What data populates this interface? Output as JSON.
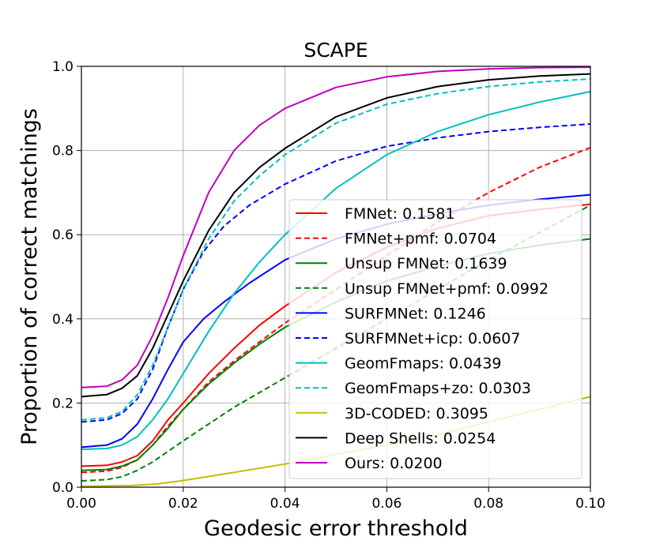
{
  "chart_data": {
    "type": "line",
    "title": "SCAPE",
    "xlabel": "Geodesic error threshold",
    "ylabel": "Proportion of correct matchings",
    "xlim": [
      0,
      0.1
    ],
    "ylim": [
      0,
      1
    ],
    "xticks": [
      0,
      0.02,
      0.04,
      0.06,
      0.08,
      0.1
    ],
    "xtick_labels": [
      "0.00",
      "0.02",
      "0.04",
      "0.06",
      "0.08",
      "0.10"
    ],
    "yticks": [
      0,
      0.2,
      0.4,
      0.6,
      0.8,
      1.0
    ],
    "ytick_labels": [
      "0.0",
      "0.2",
      "0.4",
      "0.6",
      "0.8",
      "1.0"
    ],
    "grid": true,
    "legend_position": "lower-right",
    "series": [
      {
        "name": "FMNet: 0.1581",
        "color": "#ff0000",
        "dash": false,
        "points": [
          [
            0,
            0.05
          ],
          [
            0.005,
            0.052
          ],
          [
            0.008,
            0.06
          ],
          [
            0.011,
            0.075
          ],
          [
            0.014,
            0.11
          ],
          [
            0.017,
            0.16
          ],
          [
            0.02,
            0.2
          ],
          [
            0.025,
            0.27
          ],
          [
            0.03,
            0.33
          ],
          [
            0.035,
            0.385
          ],
          [
            0.04,
            0.43
          ],
          [
            0.05,
            0.51
          ],
          [
            0.06,
            0.57
          ],
          [
            0.07,
            0.615
          ],
          [
            0.08,
            0.645
          ],
          [
            0.09,
            0.66
          ],
          [
            0.1,
            0.672
          ]
        ]
      },
      {
        "name": "FMNet+pmf: 0.0704",
        "color": "#ff0000",
        "dash": true,
        "points": [
          [
            0,
            0.035
          ],
          [
            0.005,
            0.038
          ],
          [
            0.008,
            0.047
          ],
          [
            0.011,
            0.065
          ],
          [
            0.014,
            0.1
          ],
          [
            0.017,
            0.145
          ],
          [
            0.02,
            0.185
          ],
          [
            0.025,
            0.25
          ],
          [
            0.03,
            0.3
          ],
          [
            0.035,
            0.345
          ],
          [
            0.04,
            0.39
          ],
          [
            0.05,
            0.47
          ],
          [
            0.06,
            0.55
          ],
          [
            0.07,
            0.63
          ],
          [
            0.08,
            0.7
          ],
          [
            0.09,
            0.76
          ],
          [
            0.1,
            0.807
          ]
        ]
      },
      {
        "name": "Unsup FMNet: 0.1639",
        "color": "#008000",
        "dash": false,
        "points": [
          [
            0,
            0.04
          ],
          [
            0.005,
            0.042
          ],
          [
            0.008,
            0.05
          ],
          [
            0.011,
            0.065
          ],
          [
            0.014,
            0.1
          ],
          [
            0.017,
            0.14
          ],
          [
            0.02,
            0.185
          ],
          [
            0.025,
            0.245
          ],
          [
            0.03,
            0.295
          ],
          [
            0.035,
            0.34
          ],
          [
            0.04,
            0.38
          ],
          [
            0.05,
            0.44
          ],
          [
            0.06,
            0.49
          ],
          [
            0.07,
            0.525
          ],
          [
            0.08,
            0.555
          ],
          [
            0.09,
            0.575
          ],
          [
            0.1,
            0.59
          ]
        ]
      },
      {
        "name": "Unsup FMNet+pmf: 0.0992",
        "color": "#008000",
        "dash": true,
        "points": [
          [
            0,
            0.015
          ],
          [
            0.005,
            0.018
          ],
          [
            0.008,
            0.025
          ],
          [
            0.011,
            0.04
          ],
          [
            0.014,
            0.06
          ],
          [
            0.017,
            0.085
          ],
          [
            0.02,
            0.11
          ],
          [
            0.025,
            0.15
          ],
          [
            0.03,
            0.19
          ],
          [
            0.035,
            0.225
          ],
          [
            0.04,
            0.26
          ],
          [
            0.05,
            0.33
          ],
          [
            0.06,
            0.4
          ],
          [
            0.07,
            0.47
          ],
          [
            0.08,
            0.54
          ],
          [
            0.09,
            0.605
          ],
          [
            0.1,
            0.67
          ]
        ]
      },
      {
        "name": "SURFMNet: 0.1246",
        "color": "#0000ff",
        "dash": false,
        "points": [
          [
            0,
            0.095
          ],
          [
            0.005,
            0.1
          ],
          [
            0.008,
            0.115
          ],
          [
            0.011,
            0.15
          ],
          [
            0.014,
            0.21
          ],
          [
            0.017,
            0.28
          ],
          [
            0.02,
            0.345
          ],
          [
            0.024,
            0.4
          ],
          [
            0.028,
            0.44
          ],
          [
            0.033,
            0.485
          ],
          [
            0.04,
            0.54
          ],
          [
            0.05,
            0.59
          ],
          [
            0.06,
            0.625
          ],
          [
            0.07,
            0.65
          ],
          [
            0.08,
            0.67
          ],
          [
            0.09,
            0.684
          ],
          [
            0.1,
            0.695
          ]
        ]
      },
      {
        "name": "SURFMNet+icp: 0.0607",
        "color": "#0000ff",
        "dash": true,
        "points": [
          [
            0,
            0.155
          ],
          [
            0.005,
            0.16
          ],
          [
            0.008,
            0.175
          ],
          [
            0.011,
            0.21
          ],
          [
            0.014,
            0.28
          ],
          [
            0.017,
            0.38
          ],
          [
            0.02,
            0.47
          ],
          [
            0.024,
            0.56
          ],
          [
            0.028,
            0.62
          ],
          [
            0.033,
            0.67
          ],
          [
            0.04,
            0.72
          ],
          [
            0.05,
            0.775
          ],
          [
            0.06,
            0.81
          ],
          [
            0.07,
            0.83
          ],
          [
            0.08,
            0.845
          ],
          [
            0.09,
            0.855
          ],
          [
            0.1,
            0.863
          ]
        ]
      },
      {
        "name": "GeomFmaps: 0.0439",
        "color": "#00bfbf",
        "dash": false,
        "points": [
          [
            0,
            0.09
          ],
          [
            0.005,
            0.092
          ],
          [
            0.008,
            0.1
          ],
          [
            0.011,
            0.12
          ],
          [
            0.014,
            0.16
          ],
          [
            0.017,
            0.21
          ],
          [
            0.02,
            0.27
          ],
          [
            0.025,
            0.37
          ],
          [
            0.03,
            0.46
          ],
          [
            0.035,
            0.535
          ],
          [
            0.04,
            0.6
          ],
          [
            0.05,
            0.71
          ],
          [
            0.06,
            0.79
          ],
          [
            0.07,
            0.845
          ],
          [
            0.08,
            0.885
          ],
          [
            0.09,
            0.915
          ],
          [
            0.1,
            0.94
          ]
        ]
      },
      {
        "name": "GeomFmaps+zo: 0.0303",
        "color": "#00bfbf",
        "dash": true,
        "points": [
          [
            0,
            0.16
          ],
          [
            0.005,
            0.165
          ],
          [
            0.008,
            0.18
          ],
          [
            0.011,
            0.22
          ],
          [
            0.014,
            0.29
          ],
          [
            0.017,
            0.38
          ],
          [
            0.02,
            0.47
          ],
          [
            0.025,
            0.59
          ],
          [
            0.03,
            0.68
          ],
          [
            0.035,
            0.74
          ],
          [
            0.04,
            0.79
          ],
          [
            0.05,
            0.865
          ],
          [
            0.06,
            0.91
          ],
          [
            0.07,
            0.935
          ],
          [
            0.08,
            0.952
          ],
          [
            0.09,
            0.963
          ],
          [
            0.1,
            0.97
          ]
        ]
      },
      {
        "name": "3D-CODED: 0.3095",
        "color": "#bfbf00",
        "dash": false,
        "points": [
          [
            0,
            0.002
          ],
          [
            0.01,
            0.004
          ],
          [
            0.015,
            0.008
          ],
          [
            0.02,
            0.016
          ],
          [
            0.03,
            0.035
          ],
          [
            0.04,
            0.055
          ],
          [
            0.05,
            0.078
          ],
          [
            0.06,
            0.1
          ],
          [
            0.07,
            0.125
          ],
          [
            0.08,
            0.155
          ],
          [
            0.09,
            0.185
          ],
          [
            0.1,
            0.215
          ]
        ]
      },
      {
        "name": "Deep Shells: 0.0254",
        "color": "#000000",
        "dash": false,
        "points": [
          [
            0,
            0.215
          ],
          [
            0.005,
            0.22
          ],
          [
            0.008,
            0.235
          ],
          [
            0.011,
            0.265
          ],
          [
            0.014,
            0.33
          ],
          [
            0.017,
            0.41
          ],
          [
            0.02,
            0.49
          ],
          [
            0.025,
            0.61
          ],
          [
            0.03,
            0.7
          ],
          [
            0.035,
            0.76
          ],
          [
            0.04,
            0.805
          ],
          [
            0.05,
            0.88
          ],
          [
            0.06,
            0.925
          ],
          [
            0.07,
            0.952
          ],
          [
            0.08,
            0.968
          ],
          [
            0.09,
            0.977
          ],
          [
            0.1,
            0.982
          ]
        ]
      },
      {
        "name": "Ours: 0.0200",
        "color": "#bf00bf",
        "dash": false,
        "points": [
          [
            0,
            0.237
          ],
          [
            0.005,
            0.24
          ],
          [
            0.008,
            0.255
          ],
          [
            0.011,
            0.29
          ],
          [
            0.014,
            0.36
          ],
          [
            0.017,
            0.45
          ],
          [
            0.02,
            0.55
          ],
          [
            0.025,
            0.7
          ],
          [
            0.03,
            0.8
          ],
          [
            0.035,
            0.86
          ],
          [
            0.04,
            0.9
          ],
          [
            0.05,
            0.95
          ],
          [
            0.06,
            0.975
          ],
          [
            0.07,
            0.988
          ],
          [
            0.08,
            0.994
          ],
          [
            0.09,
            0.997
          ],
          [
            0.1,
            0.998
          ]
        ]
      }
    ]
  }
}
